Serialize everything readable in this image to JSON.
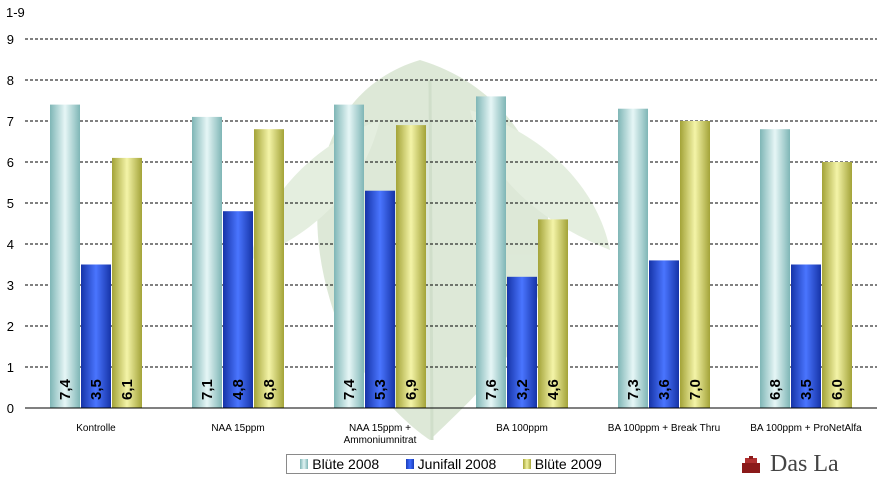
{
  "chart_data": {
    "type": "bar",
    "ylabel": "1-9",
    "ylim": [
      0,
      9
    ],
    "yticks": [
      0,
      1,
      2,
      3,
      4,
      5,
      6,
      7,
      8,
      9
    ],
    "grid": true,
    "legend_position": "bottom",
    "categories": [
      [
        "Kontrolle"
      ],
      [
        "NAA 15ppm"
      ],
      [
        "NAA 15ppm +",
        "Ammoniumnitrat"
      ],
      [
        "BA 100ppm"
      ],
      [
        "BA 100ppm + Break Thru"
      ],
      [
        "BA 100ppm + ProNetAlfa"
      ]
    ],
    "series": [
      {
        "name": "Blüte 2008",
        "color": "#bfe3e3",
        "values": [
          7.4,
          7.1,
          7.4,
          7.6,
          7.3,
          6.8
        ],
        "labels": [
          "7,4",
          "7,1",
          "7,4",
          "7,6",
          "7,3",
          "6,8"
        ]
      },
      {
        "name": "Junifall 2008",
        "color": "#2f55e6",
        "values": [
          3.5,
          4.8,
          5.3,
          3.2,
          3.6,
          3.5
        ],
        "labels": [
          "3,5",
          "4,8",
          "5,3",
          "3,2",
          "3,6",
          "3,5"
        ]
      },
      {
        "name": "Blüte 2009",
        "color": "#dede7a",
        "values": [
          6.1,
          6.8,
          6.9,
          4.6,
          7.0,
          6.0
        ],
        "labels": [
          "6,1",
          "6,8",
          "6,9",
          "4,6",
          "7,0",
          "6,0"
        ]
      }
    ]
  },
  "legend": {
    "items": [
      "Blüte 2008",
      "Junifall 2008",
      "Blüte 2009"
    ]
  },
  "logo": {
    "text": "Das La"
  }
}
